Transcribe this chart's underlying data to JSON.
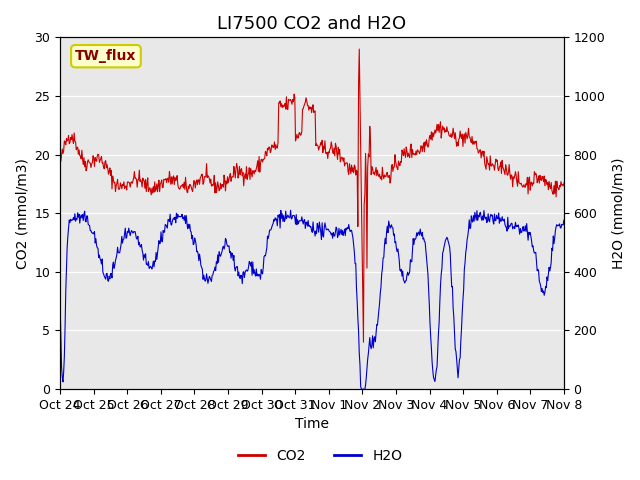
{
  "title": "LI7500 CO2 and H2O",
  "xlabel": "Time",
  "ylabel_left": "CO2 (mmol/m3)",
  "ylabel_right": "H2O (mmol/m3)",
  "ylim_left": [
    0,
    30
  ],
  "ylim_right": [
    0,
    1200
  ],
  "yticks_left": [
    0,
    5,
    10,
    15,
    20,
    25,
    30
  ],
  "yticks_right": [
    0,
    200,
    400,
    600,
    800,
    1000,
    1200
  ],
  "x_tick_labels": [
    "Oct 24",
    "Oct 25",
    "Oct 26",
    "Oct 27",
    "Oct 28",
    "Oct 29",
    "Oct 30",
    "Oct 31",
    "Nov 1",
    "Nov 2",
    "Nov 3",
    "Nov 4",
    "Nov 5",
    "Nov 6",
    "Nov 7",
    "Nov 8"
  ],
  "co2_color": "#cc0000",
  "h2o_color": "#0000cc",
  "plot_bg": "#e8e8e8",
  "annotation_text": "TW_flux",
  "annotation_bg": "#ffffcc",
  "annotation_border": "#cccc00",
  "annotation_text_color": "#880000",
  "legend_entries": [
    "CO2",
    "H2O"
  ],
  "title_fontsize": 13,
  "axis_label_fontsize": 10,
  "tick_fontsize": 9
}
